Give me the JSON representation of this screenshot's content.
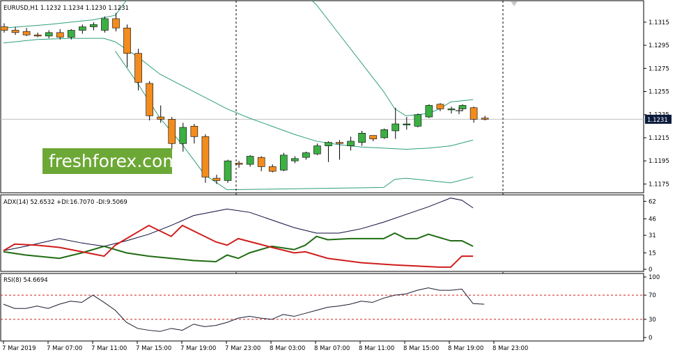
{
  "colors": {
    "bull": "#3cb043",
    "bear": "#f28c1e",
    "band": "#2e9e7a",
    "adx": "#0a0a3c",
    "plus_di": "#1f6b12",
    "minus_di": "#d01c1c",
    "rsi": "#1a1a2e",
    "level": "#d01c1c",
    "watermark_bg": "#6ca836",
    "price_tag_bg": "#0a1a3c"
  },
  "watermark": "freshforex.com",
  "chart_data": [
    {
      "type": "candlestick",
      "title": "EURUSD,H1  1.1232 1.1234 1.1230 1.1231",
      "current_price_label": "1.1231",
      "current_price": 1.1231,
      "ylim": [
        1.1168,
        1.1333
      ],
      "y_ticks": [
        "1.1315",
        "1.1295",
        "1.1275",
        "1.1255",
        "1.1235",
        "1.1215",
        "1.1195",
        "1.1175"
      ],
      "y_tick_values": [
        1.1315,
        1.1295,
        1.1275,
        1.1255,
        1.1235,
        1.1215,
        1.1195,
        1.1175
      ],
      "x_labels": [
        "7 Mar 2019",
        "7 Mar 07:00",
        "7 Mar 11:00",
        "7 Mar 15:00",
        "7 Mar 19:00",
        "7 Mar 23:00",
        "8 Mar 03:00",
        "8 Mar 07:00",
        "8 Mar 11:00",
        "8 Mar 15:00",
        "8 Mar 19:00",
        "8 Mar 23:00"
      ],
      "separators": [
        "7 Mar 23:00",
        "8 Mar 23:00"
      ],
      "candles": [
        {
          "o": 1.1311,
          "h": 1.1314,
          "l": 1.1306,
          "c": 1.1308
        },
        {
          "o": 1.1308,
          "h": 1.1311,
          "l": 1.1304,
          "c": 1.1306
        },
        {
          "o": 1.1307,
          "h": 1.131,
          "l": 1.1303,
          "c": 1.1304
        },
        {
          "o": 1.1304,
          "h": 1.1306,
          "l": 1.1302,
          "c": 1.1303
        },
        {
          "o": 1.1303,
          "h": 1.1308,
          "l": 1.1301,
          "c": 1.1306
        },
        {
          "o": 1.1306,
          "h": 1.1309,
          "l": 1.13,
          "c": 1.1302
        },
        {
          "o": 1.1302,
          "h": 1.1309,
          "l": 1.13,
          "c": 1.1308
        },
        {
          "o": 1.1308,
          "h": 1.1313,
          "l": 1.1305,
          "c": 1.1311
        },
        {
          "o": 1.1311,
          "h": 1.1315,
          "l": 1.1308,
          "c": 1.1313
        },
        {
          "o": 1.1308,
          "h": 1.132,
          "l": 1.1306,
          "c": 1.1318
        },
        {
          "o": 1.1318,
          "h": 1.1323,
          "l": 1.1307,
          "c": 1.131
        },
        {
          "o": 1.131,
          "h": 1.1313,
          "l": 1.1276,
          "c": 1.1288
        },
        {
          "o": 1.1288,
          "h": 1.1292,
          "l": 1.1256,
          "c": 1.1263
        },
        {
          "o": 1.1262,
          "h": 1.1264,
          "l": 1.123,
          "c": 1.1234
        },
        {
          "o": 1.1233,
          "h": 1.1243,
          "l": 1.1228,
          "c": 1.1231
        },
        {
          "o": 1.1231,
          "h": 1.1233,
          "l": 1.1205,
          "c": 1.121
        },
        {
          "o": 1.121,
          "h": 1.1228,
          "l": 1.1203,
          "c": 1.1224
        },
        {
          "o": 1.1225,
          "h": 1.1227,
          "l": 1.121,
          "c": 1.1216
        },
        {
          "o": 1.1216,
          "h": 1.1218,
          "l": 1.1176,
          "c": 1.1181
        },
        {
          "o": 1.118,
          "h": 1.1183,
          "l": 1.1175,
          "c": 1.1178
        },
        {
          "o": 1.1178,
          "h": 1.1196,
          "l": 1.1176,
          "c": 1.1195
        },
        {
          "o": 1.1193,
          "h": 1.1195,
          "l": 1.1189,
          "c": 1.1192
        },
        {
          "o": 1.1192,
          "h": 1.12,
          "l": 1.119,
          "c": 1.1199
        },
        {
          "o": 1.1198,
          "h": 1.1199,
          "l": 1.1186,
          "c": 1.119
        },
        {
          "o": 1.119,
          "h": 1.1192,
          "l": 1.1185,
          "c": 1.1186
        },
        {
          "o": 1.1187,
          "h": 1.1202,
          "l": 1.1186,
          "c": 1.12
        },
        {
          "o": 1.1195,
          "h": 1.1199,
          "l": 1.1193,
          "c": 1.1197
        },
        {
          "o": 1.1198,
          "h": 1.1203,
          "l": 1.1196,
          "c": 1.1202
        },
        {
          "o": 1.1201,
          "h": 1.121,
          "l": 1.12,
          "c": 1.1208
        },
        {
          "o": 1.1208,
          "h": 1.1212,
          "l": 1.1194,
          "c": 1.1211
        },
        {
          "o": 1.1211,
          "h": 1.1213,
          "l": 1.1196,
          "c": 1.121
        },
        {
          "o": 1.1208,
          "h": 1.1216,
          "l": 1.1204,
          "c": 1.1212
        },
        {
          "o": 1.1211,
          "h": 1.1221,
          "l": 1.1208,
          "c": 1.1219
        },
        {
          "o": 1.1217,
          "h": 1.1217,
          "l": 1.1212,
          "c": 1.1214
        },
        {
          "o": 1.1215,
          "h": 1.1223,
          "l": 1.1214,
          "c": 1.1222
        },
        {
          "o": 1.1221,
          "h": 1.1241,
          "l": 1.1214,
          "c": 1.1227
        },
        {
          "o": 1.1226,
          "h": 1.1233,
          "l": 1.1222,
          "c": 1.1227
        },
        {
          "o": 1.1225,
          "h": 1.1236,
          "l": 1.1224,
          "c": 1.1235
        },
        {
          "o": 1.1233,
          "h": 1.1244,
          "l": 1.1232,
          "c": 1.1243
        },
        {
          "o": 1.1244,
          "h": 1.1245,
          "l": 1.1238,
          "c": 1.124
        },
        {
          "o": 1.124,
          "h": 1.1242,
          "l": 1.1236,
          "c": 1.124
        },
        {
          "o": 1.124,
          "h": 1.1244,
          "l": 1.1238,
          "c": 1.1243
        },
        {
          "o": 1.1241,
          "h": 1.1242,
          "l": 1.1228,
          "c": 1.1231
        },
        {
          "o": 1.1232,
          "h": 1.1234,
          "l": 1.123,
          "c": 1.1231
        }
      ],
      "bollinger": {
        "upper": [
          [
            0,
            1.131
          ],
          [
            4,
            1.1313
          ],
          [
            8,
            1.1317
          ],
          [
            10,
            1.1321
          ],
          [
            11,
            1.1334
          ],
          [
            12.5,
            1.135
          ],
          [
            26,
            1.1348
          ],
          [
            28,
            1.133
          ],
          [
            30,
            1.1305
          ],
          [
            32,
            1.128
          ],
          [
            34,
            1.1255
          ],
          [
            35,
            1.124
          ],
          [
            36,
            1.1234
          ],
          [
            38,
            1.1236
          ],
          [
            39,
            1.124
          ],
          [
            40,
            1.1246
          ],
          [
            42,
            1.1248
          ]
        ],
        "middle": [
          [
            0,
            1.1297
          ],
          [
            3,
            1.13
          ],
          [
            6,
            1.1301
          ],
          [
            9,
            1.1301
          ],
          [
            10,
            1.1298
          ],
          [
            12,
            1.1285
          ],
          [
            14,
            1.127
          ],
          [
            16,
            1.126
          ],
          [
            18,
            1.125
          ],
          [
            20,
            1.124
          ],
          [
            22,
            1.1232
          ],
          [
            24,
            1.1225
          ],
          [
            26,
            1.1218
          ],
          [
            28,
            1.1212
          ],
          [
            30,
            1.1209
          ],
          [
            32,
            1.1207
          ],
          [
            34,
            1.1206
          ],
          [
            36,
            1.1205
          ],
          [
            38,
            1.1206
          ],
          [
            40,
            1.1208
          ],
          [
            42,
            1.1213
          ]
        ],
        "lower": [
          [
            10,
            1.129
          ],
          [
            12,
            1.1262
          ],
          [
            14,
            1.1232
          ],
          [
            16,
            1.1209
          ],
          [
            18,
            1.1183
          ],
          [
            20,
            1.117
          ],
          [
            34,
            1.1172
          ],
          [
            35,
            1.1179
          ],
          [
            36,
            1.118
          ],
          [
            38,
            1.1178
          ],
          [
            40,
            1.1176
          ],
          [
            42,
            1.1181
          ]
        ]
      }
    },
    {
      "type": "line",
      "title": "ADX(14) 52.6532 +DI:16.7070 -DI:9.5069",
      "ylim": [
        0,
        66
      ],
      "y_ticks": [
        "62",
        "46",
        "31",
        "15",
        "0"
      ],
      "y_tick_values": [
        62,
        46,
        31,
        15,
        0
      ],
      "series": [
        {
          "name": "ADX",
          "values": [
            [
              0,
              17
            ],
            [
              2,
              21
            ],
            [
              5,
              28
            ],
            [
              7,
              24
            ],
            [
              9,
              21
            ],
            [
              11,
              26
            ],
            [
              13,
              32
            ],
            [
              15,
              40
            ],
            [
              17,
              49
            ],
            [
              20,
              55
            ],
            [
              22,
              52
            ],
            [
              24,
              45
            ],
            [
              26,
              38
            ],
            [
              28,
              33
            ],
            [
              30,
              33
            ],
            [
              32,
              37
            ],
            [
              34,
              43
            ],
            [
              36,
              50
            ],
            [
              38,
              57
            ],
            [
              40,
              65
            ],
            [
              41,
              63
            ],
            [
              42,
              56
            ]
          ]
        },
        {
          "name": "+DI",
          "values": [
            [
              0,
              16
            ],
            [
              2,
              13
            ],
            [
              5,
              10
            ],
            [
              7,
              15
            ],
            [
              9,
              21
            ],
            [
              11,
              15
            ],
            [
              13,
              12
            ],
            [
              15,
              10
            ],
            [
              17,
              8
            ],
            [
              19,
              7
            ],
            [
              20,
              13
            ],
            [
              21,
              10
            ],
            [
              22,
              15
            ],
            [
              24,
              21
            ],
            [
              26,
              18
            ],
            [
              27,
              22
            ],
            [
              28,
              30
            ],
            [
              29,
              27
            ],
            [
              31,
              28
            ],
            [
              34,
              28
            ],
            [
              35,
              33
            ],
            [
              36,
              28
            ],
            [
              37,
              28
            ],
            [
              38,
              32
            ],
            [
              40,
              26
            ],
            [
              41,
              26
            ],
            [
              42,
              21
            ]
          ]
        },
        {
          "name": "-DI",
          "values": [
            [
              0,
              17
            ],
            [
              1,
              23
            ],
            [
              3,
              22
            ],
            [
              5,
              20
            ],
            [
              7,
              16
            ],
            [
              9,
              12
            ],
            [
              10,
              22
            ],
            [
              12,
              34
            ],
            [
              13,
              40
            ],
            [
              15,
              30
            ],
            [
              16,
              40
            ],
            [
              19,
              25
            ],
            [
              20,
              22
            ],
            [
              21,
              28
            ],
            [
              24,
              20
            ],
            [
              26,
              15
            ],
            [
              27,
              16
            ],
            [
              29,
              10
            ],
            [
              32,
              6
            ],
            [
              35,
              4
            ],
            [
              39,
              2
            ],
            [
              40,
              2
            ],
            [
              41,
              12
            ],
            [
              42,
              12
            ]
          ]
        }
      ]
    },
    {
      "type": "line",
      "title": "RSI(8) 54.6694",
      "ylim": [
        0,
        100
      ],
      "y_ticks": [
        "100",
        "70",
        "30",
        "0"
      ],
      "y_tick_values": [
        100,
        70,
        30,
        0
      ],
      "levels": [
        70,
        30
      ],
      "series": [
        {
          "name": "RSI(8)",
          "values": [
            [
              0,
              55
            ],
            [
              1,
              48
            ],
            [
              2,
              48
            ],
            [
              3,
              52
            ],
            [
              4,
              48
            ],
            [
              5,
              55
            ],
            [
              6,
              60
            ],
            [
              7,
              58
            ],
            [
              8,
              70
            ],
            [
              9,
              58
            ],
            [
              10,
              45
            ],
            [
              11,
              25
            ],
            [
              12,
              15
            ],
            [
              13,
              12
            ],
            [
              14,
              10
            ],
            [
              15,
              15
            ],
            [
              16,
              12
            ],
            [
              17,
              22
            ],
            [
              18,
              18
            ],
            [
              19,
              20
            ],
            [
              20,
              25
            ],
            [
              21,
              32
            ],
            [
              22,
              35
            ],
            [
              23,
              32
            ],
            [
              24,
              30
            ],
            [
              25,
              38
            ],
            [
              26,
              35
            ],
            [
              27,
              40
            ],
            [
              28,
              45
            ],
            [
              29,
              50
            ],
            [
              30,
              52
            ],
            [
              31,
              55
            ],
            [
              32,
              60
            ],
            [
              33,
              58
            ],
            [
              34,
              65
            ],
            [
              35,
              70
            ],
            [
              36,
              72
            ],
            [
              37,
              78
            ],
            [
              38,
              82
            ],
            [
              39,
              78
            ],
            [
              40,
              78
            ],
            [
              41,
              80
            ],
            [
              42,
              56
            ],
            [
              43,
              55
            ]
          ]
        }
      ]
    }
  ]
}
